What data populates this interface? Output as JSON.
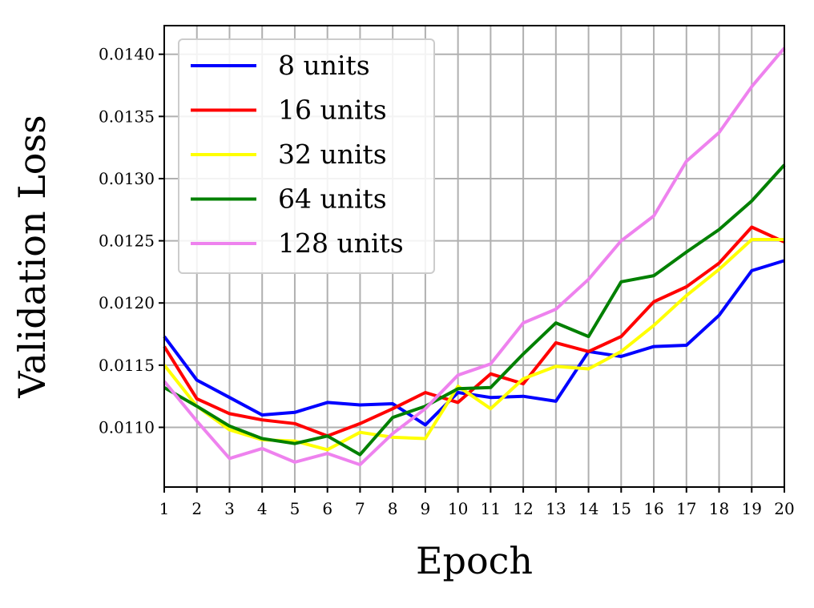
{
  "chart_data": {
    "type": "line",
    "title": "",
    "xlabel": "Epoch",
    "ylabel": "Validation Loss",
    "x": [
      1,
      2,
      3,
      4,
      5,
      6,
      7,
      8,
      9,
      10,
      11,
      12,
      13,
      14,
      15,
      16,
      17,
      18,
      19,
      20
    ],
    "xlim": [
      1,
      20
    ],
    "ylim": [
      0.01052,
      0.01423
    ],
    "xticks": [
      "1",
      "2",
      "3",
      "4",
      "5",
      "6",
      "7",
      "8",
      "9",
      "10",
      "11",
      "12",
      "13",
      "14",
      "15",
      "16",
      "17",
      "18",
      "19",
      "20"
    ],
    "yticks": [
      {
        "value": 0.011,
        "label": "0.0110"
      },
      {
        "value": 0.0115,
        "label": "0.0115"
      },
      {
        "value": 0.012,
        "label": "0.0120"
      },
      {
        "value": 0.0125,
        "label": "0.0125"
      },
      {
        "value": 0.013,
        "label": "0.0130"
      },
      {
        "value": 0.0135,
        "label": "0.0135"
      },
      {
        "value": 0.014,
        "label": "0.0140"
      }
    ],
    "grid": true,
    "legend_position": "top-left",
    "series": [
      {
        "name": "8 units",
        "color": "#0000ff",
        "values": [
          0.01173,
          0.01138,
          0.01124,
          0.0111,
          0.01112,
          0.0112,
          0.01118,
          0.01119,
          0.01102,
          0.01128,
          0.01124,
          0.01125,
          0.01121,
          0.01161,
          0.01157,
          0.01165,
          0.01166,
          0.0119,
          0.01226,
          0.01234
        ]
      },
      {
        "name": "16 units",
        "color": "#ff0000",
        "values": [
          0.01165,
          0.01123,
          0.01111,
          0.01106,
          0.01103,
          0.01093,
          0.01103,
          0.01115,
          0.01128,
          0.0112,
          0.01143,
          0.01135,
          0.01168,
          0.01161,
          0.01173,
          0.01201,
          0.01213,
          0.01232,
          0.01261,
          0.01249
        ]
      },
      {
        "name": "32 units",
        "color": "#ffff00",
        "values": [
          0.0115,
          0.01117,
          0.01098,
          0.0109,
          0.01089,
          0.01082,
          0.01096,
          0.01092,
          0.01091,
          0.01133,
          0.01115,
          0.01139,
          0.01149,
          0.01147,
          0.01161,
          0.01182,
          0.01206,
          0.01227,
          0.01251,
          0.01251
        ]
      },
      {
        "name": "64 units",
        "color": "#008000",
        "values": [
          0.01132,
          0.01117,
          0.01101,
          0.01091,
          0.01087,
          0.01093,
          0.01078,
          0.01108,
          0.01117,
          0.01131,
          0.01132,
          0.01159,
          0.01184,
          0.01173,
          0.01217,
          0.01222,
          0.01241,
          0.01259,
          0.01282,
          0.01311
        ]
      },
      {
        "name": "128 units",
        "color": "#ee82ee",
        "values": [
          0.01137,
          0.01105,
          0.01075,
          0.01083,
          0.01072,
          0.01079,
          0.0107,
          0.01095,
          0.01115,
          0.01142,
          0.01151,
          0.01184,
          0.01195,
          0.01219,
          0.0125,
          0.0127,
          0.01314,
          0.01337,
          0.01374,
          0.01405
        ]
      }
    ]
  }
}
